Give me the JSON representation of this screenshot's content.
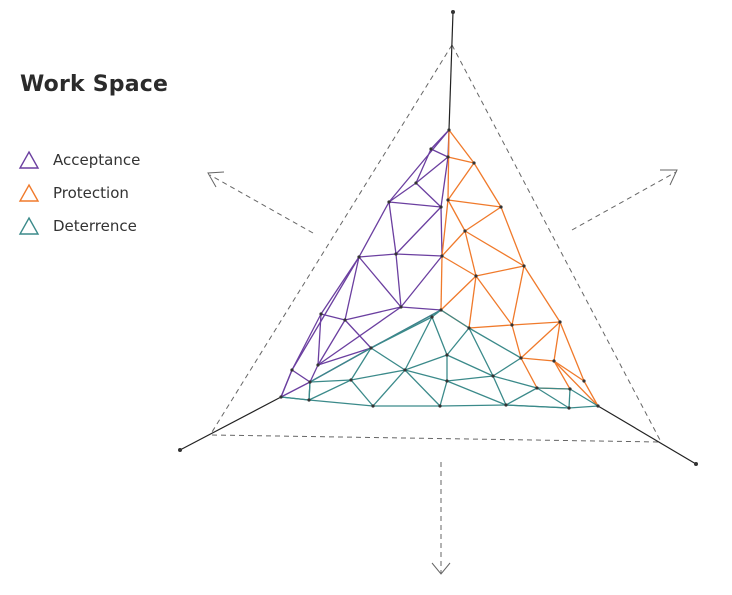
{
  "title": "Work Space",
  "legend": [
    {
      "label": "Acceptance",
      "color": "#6b3fa0"
    },
    {
      "label": "Protection",
      "color": "#f07a2b"
    },
    {
      "label": "Deterrence",
      "color": "#3b8a8a"
    }
  ],
  "icons": {
    "arrow_left": "arrow-up-left-icon",
    "arrow_right": "arrow-up-right-icon",
    "arrow_down": "arrow-down-icon"
  }
}
